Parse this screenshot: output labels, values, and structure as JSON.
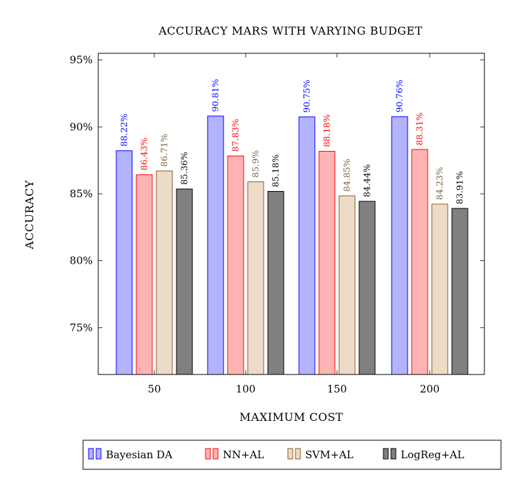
{
  "chart_data": {
    "type": "bar",
    "title": "ACCURACY MARS WITH VARYING BUDGET",
    "xlabel": "MAXIMUM COST",
    "ylabel": "ACCURACY",
    "categories": [
      "50",
      "100",
      "150",
      "200"
    ],
    "ylim": [
      71.5,
      95.5
    ],
    "yticks": [
      75,
      80,
      85,
      90,
      95
    ],
    "ytick_labels": [
      "75%",
      "80%",
      "85%",
      "90%",
      "95%"
    ],
    "legend_position": "bottom",
    "series": [
      {
        "name": "Bayesian DA",
        "values": [
          88.22,
          90.81,
          90.75,
          90.76
        ],
        "labels": [
          "88.22%",
          "90.81%",
          "90.75%",
          "90.76%"
        ],
        "fill": "#b3b3ff",
        "stroke": "#0000ff",
        "label_color": "#0000ff"
      },
      {
        "name": "NN+AL",
        "values": [
          86.43,
          87.83,
          88.18,
          88.31
        ],
        "labels": [
          "86.43%",
          "87.83%",
          "88.18%",
          "88.31%"
        ],
        "fill": "#ffb3b3",
        "stroke": "#ff0000",
        "label_color": "#ff0000"
      },
      {
        "name": "SVM+AL",
        "values": [
          86.71,
          85.9,
          84.85,
          84.23
        ],
        "labels": [
          "86.71%",
          "85.9%",
          "84.85%",
          "84.23%"
        ],
        "fill": "#ecdbc6",
        "stroke": "#8b5a2b",
        "label_color": "#7a6040"
      },
      {
        "name": "LogReg+AL",
        "values": [
          85.36,
          85.18,
          84.44,
          83.91
        ],
        "labels": [
          "85.36%",
          "85.18%",
          "84.44%",
          "83.91%"
        ],
        "fill": "#808080",
        "stroke": "#000000",
        "label_color": "#000000"
      }
    ]
  }
}
